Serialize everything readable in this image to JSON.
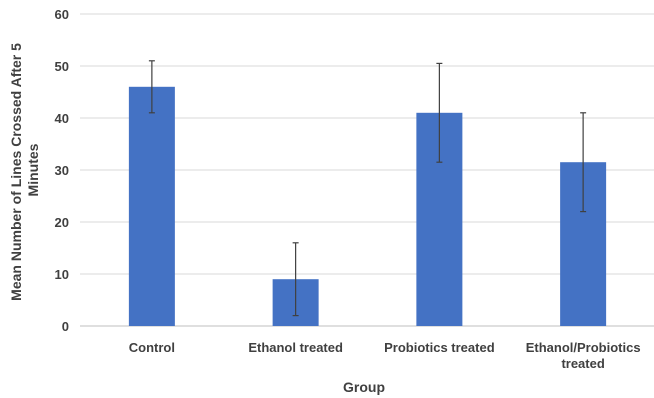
{
  "chart_data": {
    "type": "bar",
    "categories": [
      "Control",
      "Ethanol treated",
      "Probiotics treated",
      "Ethanol/Probiotics treated"
    ],
    "category_lines": [
      [
        "Control"
      ],
      [
        "Ethanol treated"
      ],
      [
        "Probiotics treated"
      ],
      [
        "Ethanol/Probiotics",
        "treated"
      ]
    ],
    "values": [
      46,
      9,
      41,
      31.5
    ],
    "error_low": [
      41,
      2,
      31.5,
      22
    ],
    "error_high": [
      51,
      16,
      50.5,
      41
    ],
    "xlabel": "Group",
    "ylabel_lines": [
      "Mean Number of Lines Crossed After 5",
      "Minutes"
    ],
    "ylim": [
      0,
      60
    ],
    "yticks": [
      0,
      10,
      20,
      30,
      40,
      50,
      60
    ],
    "grid": true,
    "legend": "none",
    "bar_color": "#4472c4"
  }
}
